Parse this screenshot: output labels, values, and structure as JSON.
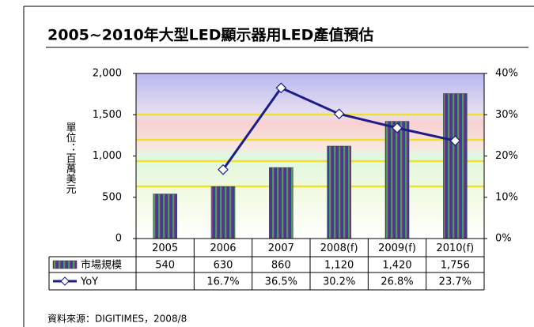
{
  "chart_data": {
    "type": "bar-line",
    "title": "2005~2010年大型LED顯示器用LED產值預估",
    "y_label": "單位：百萬美元",
    "source": "資料來源：DIGITIMES，2008/8",
    "categories": [
      "2005",
      "2006",
      "2007",
      "2008(f)",
      "2009(f)",
      "2010(f)"
    ],
    "series": [
      {
        "name": "市場規模",
        "color": "#3a3f9a",
        "values": [
          540,
          630,
          860,
          1120,
          1420,
          1756
        ],
        "value_labels": [
          "540",
          "630",
          "860",
          "1,120",
          "1,420",
          "1,756"
        ]
      },
      {
        "name": "YoY",
        "color": "#1c1c8a",
        "axis": "y2",
        "values": [
          null,
          16.7,
          36.5,
          30.2,
          26.8,
          23.7
        ],
        "value_labels": [
          null,
          "16.7%",
          "36.5%",
          "30.2%",
          "26.8%",
          "23.7%"
        ]
      }
    ],
    "ylim": [
      0,
      2000
    ],
    "yticks": [
      0,
      500,
      {
        "value": 1000,
        "label": "1,000"
      },
      {
        "value": 1500,
        "label": "1,500"
      },
      {
        "value": 2000,
        "label": "2,000"
      }
    ],
    "y2lim": [
      0,
      40
    ],
    "y2ticks": [
      {
        "value": 0,
        "label": "0%"
      },
      {
        "value": 10,
        "label": "10%"
      },
      {
        "value": 20,
        "label": "20%"
      },
      {
        "value": 30,
        "label": "30%"
      },
      {
        "value": 40,
        "label": "40%"
      }
    ]
  }
}
